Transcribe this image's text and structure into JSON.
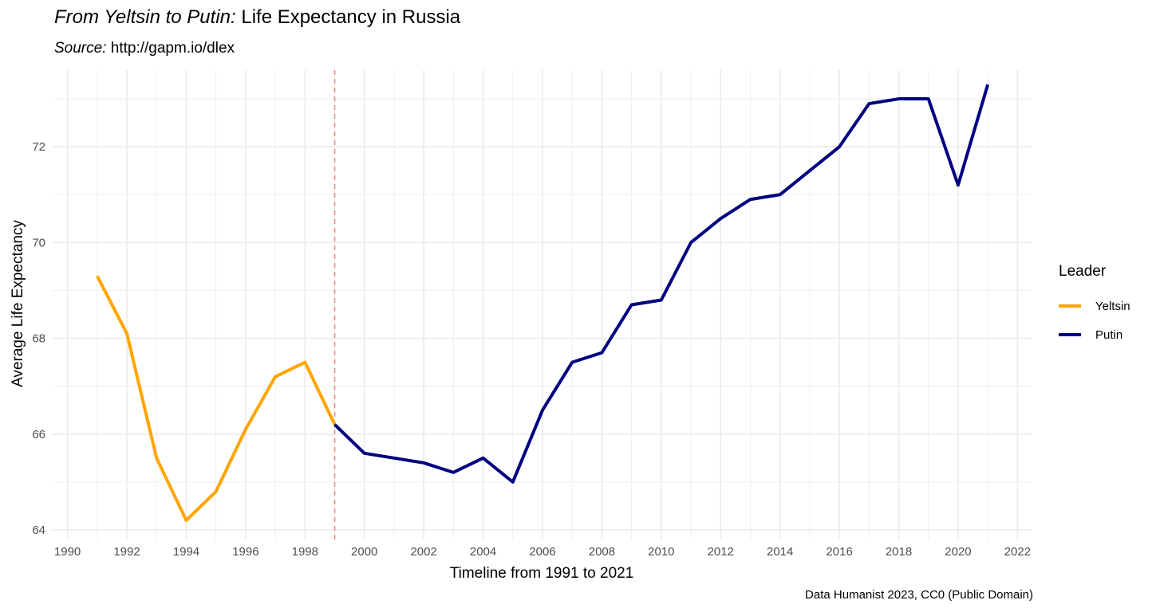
{
  "title": {
    "italic": "From Yeltsin to Putin:",
    "rest": " Life Expectancy in Russia"
  },
  "subtitle": {
    "italic": "Source:",
    "rest": " http://gapm.io/dlex"
  },
  "caption": "Data Humanist 2023, CC0 (Public Domain)",
  "legend": {
    "title": "Leader",
    "items": [
      {
        "label": "Yeltsin",
        "color": "#FFA500"
      },
      {
        "label": "Putin",
        "color": "#000080"
      }
    ]
  },
  "chart_data": {
    "type": "line",
    "xlabel": "Timeline from 1991 to 2021",
    "ylabel": "Average Life Expectancy",
    "xlim": [
      1989.5,
      2022.5
    ],
    "ylim": [
      63.8,
      73.6
    ],
    "xticks": [
      1990,
      1992,
      1994,
      1996,
      1998,
      2000,
      2002,
      2004,
      2006,
      2008,
      2010,
      2012,
      2014,
      2016,
      2018,
      2020,
      2022
    ],
    "yticks": [
      64,
      66,
      68,
      70,
      72
    ],
    "grid": true,
    "legend_position": "right",
    "vline": {
      "x": 1999,
      "color": "#F08080",
      "style": "dashed"
    },
    "series": [
      {
        "name": "Yeltsin",
        "color": "#FFA500",
        "x": [
          1991,
          1992,
          1993,
          1994,
          1995,
          1996,
          1997,
          1998,
          1999
        ],
        "y": [
          69.3,
          68.1,
          65.5,
          64.2,
          64.8,
          66.1,
          67.2,
          67.5,
          66.2
        ]
      },
      {
        "name": "Putin",
        "color": "#000080",
        "x": [
          1999,
          2000,
          2001,
          2002,
          2003,
          2004,
          2005,
          2006,
          2007,
          2008,
          2009,
          2010,
          2011,
          2012,
          2013,
          2014,
          2015,
          2016,
          2017,
          2018,
          2019,
          2020,
          2021
        ],
        "y": [
          66.2,
          65.6,
          65.5,
          65.4,
          65.2,
          65.5,
          65.0,
          66.5,
          67.5,
          67.7,
          68.7,
          68.8,
          70.0,
          70.5,
          70.9,
          71.0,
          71.5,
          72.0,
          72.9,
          73.0,
          73.0,
          71.2,
          73.3
        ]
      }
    ]
  }
}
